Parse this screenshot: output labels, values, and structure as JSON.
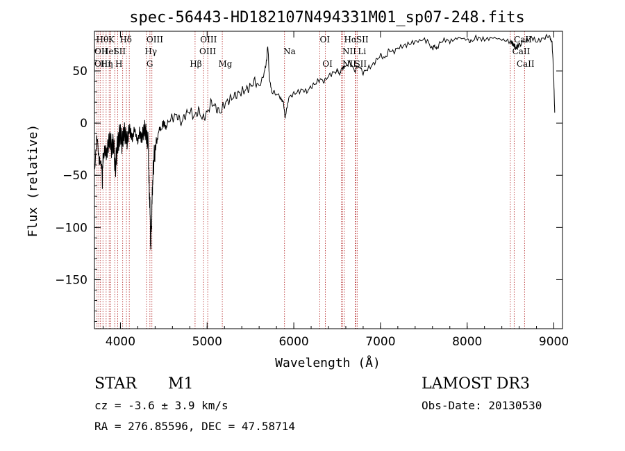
{
  "chart_data": {
    "type": "line",
    "title": "spec-56443-HD182107N494331M01_sp07-248.fits",
    "xlabel": "Wavelength (Å)",
    "ylabel": "Flux (relative)",
    "xlim": [
      3700,
      9100
    ],
    "ylim": [
      -197,
      88
    ],
    "xticks": [
      4000,
      5000,
      6000,
      7000,
      8000,
      9000
    ],
    "xtick_labels": [
      "4000",
      "5000",
      "6000",
      "7000",
      "8000",
      "9000"
    ],
    "yticks": [
      50,
      0,
      -50,
      -100,
      -150
    ],
    "ytick_labels": [
      "50",
      "0",
      "−50",
      "−100",
      "−150"
    ],
    "series": [
      {
        "name": "flux",
        "x": [
          3700,
          3730,
          3760,
          3790,
          3800,
          3820,
          3840,
          3860,
          3880,
          3900,
          3920,
          3940,
          3960,
          3980,
          4000,
          4020,
          4040,
          4060,
          4080,
          4100,
          4120,
          4140,
          4160,
          4180,
          4200,
          4220,
          4240,
          4260,
          4280,
          4300,
          4320,
          4330,
          4340,
          4350,
          4360,
          4370,
          4380,
          4400,
          4420,
          4450,
          4480,
          4500,
          4520,
          4550,
          4600,
          4650,
          4700,
          4750,
          4800,
          4850,
          4900,
          4950,
          5000,
          5050,
          5100,
          5150,
          5200,
          5250,
          5300,
          5350,
          5400,
          5450,
          5500,
          5550,
          5600,
          5650,
          5680,
          5700,
          5720,
          5750,
          5800,
          5850,
          5880,
          5900,
          5920,
          5950,
          6000,
          6050,
          6100,
          6150,
          6200,
          6250,
          6300,
          6350,
          6400,
          6450,
          6500,
          6530,
          6560,
          6600,
          6650,
          6700,
          6750,
          6800,
          6850,
          6900,
          6950,
          7000,
          7050,
          7100,
          7150,
          7200,
          7300,
          7400,
          7500,
          7550,
          7600,
          7620,
          7650,
          7700,
          7750,
          7800,
          7900,
          8000,
          8050,
          8100,
          8200,
          8300,
          8400,
          8500,
          8540,
          8560,
          8600,
          8650,
          8700,
          8750,
          8800,
          8850,
          8900,
          8950,
          8980,
          9000,
          9010
        ],
        "values": [
          -40,
          -20,
          -30,
          -55,
          -35,
          -25,
          -30,
          -20,
          -15,
          -25,
          -18,
          -45,
          -25,
          -15,
          -10,
          -20,
          -8,
          -12,
          -18,
          -5,
          -10,
          -15,
          -5,
          -12,
          -18,
          -8,
          -15,
          -10,
          -5,
          -12,
          -20,
          -60,
          -80,
          -120,
          -90,
          -60,
          -40,
          -25,
          -15,
          -8,
          -2,
          0,
          -3,
          2,
          5,
          8,
          0,
          8,
          12,
          6,
          12,
          4,
          10,
          20,
          15,
          10,
          18,
          22,
          25,
          28,
          30,
          32,
          35,
          40,
          35,
          45,
          55,
          75,
          40,
          30,
          28,
          25,
          20,
          5,
          15,
          25,
          28,
          30,
          32,
          30,
          35,
          38,
          42,
          40,
          45,
          48,
          50,
          48,
          52,
          55,
          58,
          50,
          55,
          48,
          52,
          55,
          60,
          65,
          62,
          70,
          68,
          72,
          75,
          78,
          80,
          78,
          70,
          75,
          72,
          78,
          80,
          78,
          82,
          80,
          78,
          82,
          80,
          82,
          80,
          78,
          75,
          72,
          75,
          78,
          80,
          82,
          78,
          80,
          82,
          84,
          78,
          40,
          10
        ]
      }
    ],
    "lines_top": [
      "Hθ",
      "K",
      "Hδ",
      "OIII",
      "OIII",
      "OI",
      "Hα",
      "SII",
      "CaII"
    ],
    "lines_mid": [
      "OII",
      "HeI",
      "SII",
      "Hγ",
      "OIII",
      "Na",
      "NII",
      "Li",
      "CaII"
    ],
    "lines_low": [
      "OIII",
      "Hη",
      "H",
      "G",
      "Hβ",
      "Mg",
      "OI",
      "NII",
      "SII",
      "CaII"
    ],
    "line_markers_x": [
      3730,
      3750,
      3770,
      3798,
      3835,
      3870,
      3889,
      3934,
      3969,
      4026,
      4069,
      4102,
      4300,
      4340,
      4363,
      4861,
      4959,
      5007,
      5175,
      5893,
      6300,
      6364,
      6548,
      6563,
      6583,
      6708,
      6716,
      6731,
      8498,
      8542,
      8662
    ]
  },
  "info": {
    "star": "STAR",
    "class": "M1",
    "cz": "cz = -3.6 ± 3.9 km/s",
    "coords": "RA = 276.85596, DEC =  47.58714",
    "survey": "LAMOST DR3",
    "obs_date": "Obs-Date: 20130530"
  }
}
